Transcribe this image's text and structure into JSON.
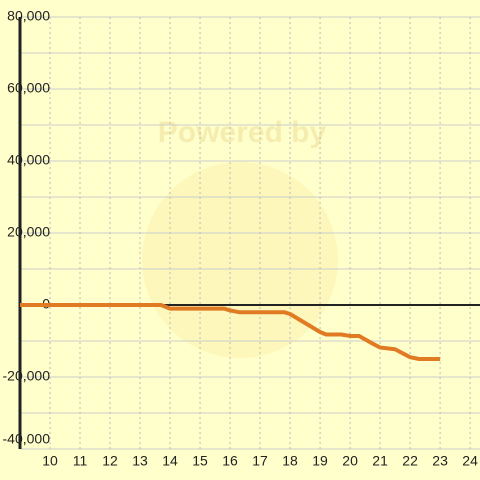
{
  "chart_data": {
    "type": "line",
    "watermark": "Powered by",
    "x": [
      9,
      13.7,
      14,
      15.8,
      16,
      16.3,
      17.8,
      18,
      18.5,
      19,
      19.2,
      19.7,
      20,
      20.3,
      20.7,
      21,
      21.5,
      22,
      22.3,
      23
    ],
    "series": [
      {
        "color": "#e07b24",
        "values": [
          0,
          0,
          -1000,
          -1000,
          -1500,
          -2000,
          -2000,
          -2500,
          -5000,
          -7500,
          -8200,
          -8200,
          -8600,
          -8600,
          -10500,
          -11800,
          -12300,
          -14500,
          -15000,
          -15000
        ]
      }
    ],
    "xlim": [
      9,
      24.33
    ],
    "xticks": [
      10,
      11,
      12,
      13,
      14,
      15,
      16,
      17,
      18,
      19,
      20,
      21,
      22,
      23,
      24
    ],
    "ylim": [
      -40000,
      80000
    ],
    "yticks": [
      {
        "value": -40000,
        "label": "-40,000"
      },
      {
        "value": -20000,
        "label": "-20,000"
      },
      0,
      {
        "value": 20000,
        "label": "20,000"
      },
      {
        "value": 40000,
        "label": "40,000"
      },
      {
        "value": 60000,
        "label": "60,000"
      },
      {
        "value": 80000,
        "label": "80,000"
      }
    ],
    "y_minor_ticks": [
      -30000,
      -10000,
      10000,
      30000,
      50000,
      70000
    ],
    "grid": true
  }
}
